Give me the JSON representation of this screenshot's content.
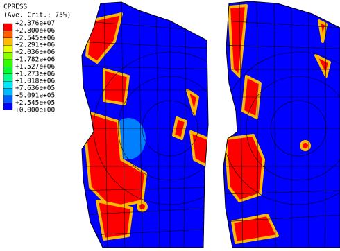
{
  "legend": {
    "variable": "CPRESS",
    "averaging": "(Ave. Crit.: 75%)",
    "labels": [
      "+2.376e+07",
      "+2.800e+06",
      "+2.545e+06",
      "+2.291e+06",
      "+2.036e+06",
      "+1.782e+06",
      "+1.527e+06",
      "+1.273e+06",
      "+1.018e+06",
      "+7.636e+05",
      "+5.091e+05",
      "+2.545e+05",
      "+0.000e+00"
    ],
    "colors": [
      "#ff0000",
      "#ff5d00",
      "#ffb900",
      "#e8ff00",
      "#8bff00",
      "#2eff00",
      "#00ff2e",
      "#00ff8b",
      "#00e8ff",
      "#00b9ff",
      "#005dff",
      "#0000ff"
    ]
  }
}
